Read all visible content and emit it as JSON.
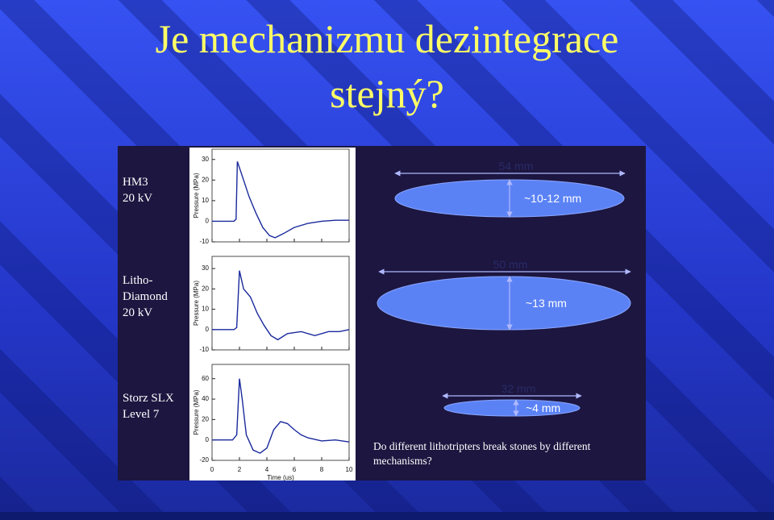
{
  "title_lines": [
    "Je mechanizmu dezintegrace",
    "stejný?"
  ],
  "figure": {
    "y_label": "Pressure (MPa)",
    "x_label": "Time (us)",
    "xlim": [
      0,
      10
    ],
    "xticks": [
      0,
      2,
      4,
      6,
      8,
      10
    ],
    "line_color": "#1a2a9c",
    "panels": [
      {
        "device": [
          "HM3",
          "20 kV"
        ],
        "ylim": [
          -10,
          35
        ],
        "yticks": [
          30,
          20,
          10,
          0,
          -10
        ],
        "x": [
          0,
          1.6,
          1.75,
          1.85,
          2.2,
          2.7,
          3.2,
          3.7,
          4.2,
          4.6,
          5.2,
          6,
          7,
          8,
          9,
          10
        ],
        "values": [
          0,
          0,
          1,
          29,
          22,
          12,
          4,
          -3,
          -7,
          -8,
          -6,
          -3,
          -1,
          0,
          0.5,
          0.5
        ],
        "focal_length": "54 mm",
        "focal_width": "~10-12 mm"
      },
      {
        "device": [
          "Litho-",
          "Diamond",
          "20 kV"
        ],
        "ylim": [
          -10,
          36
        ],
        "yticks": [
          30,
          20,
          10,
          0,
          -10
        ],
        "x": [
          0,
          1.6,
          1.8,
          2,
          2.3,
          2.8,
          3.3,
          3.8,
          4.3,
          4.8,
          5.5,
          6.5,
          7.5,
          8.5,
          9.3,
          10
        ],
        "values": [
          0,
          0,
          1,
          29,
          20,
          16,
          8,
          2,
          -3,
          -5,
          -2,
          -1,
          -3,
          -1,
          -1,
          0
        ],
        "focal_length": "50 mm",
        "focal_width": "~13 mm"
      },
      {
        "device": [
          "Storz SLX",
          "Level 7"
        ],
        "ylim": [
          -20,
          74
        ],
        "yticks": [
          60,
          40,
          20,
          0,
          -20
        ],
        "x": [
          0,
          1.5,
          1.8,
          2,
          2.2,
          2.5,
          3,
          3.5,
          4,
          4.5,
          5,
          5.5,
          6,
          6.5,
          7,
          8,
          9,
          10
        ],
        "values": [
          0,
          0,
          5,
          60,
          40,
          5,
          -10,
          -13,
          -8,
          10,
          18,
          16,
          10,
          5,
          2,
          -1,
          0,
          -2
        ],
        "focal_length": "32 mm",
        "focal_width": "~4 mm"
      }
    ],
    "question_lines": [
      "Do different lithotripters break stones by different",
      "mechanisms?"
    ]
  }
}
